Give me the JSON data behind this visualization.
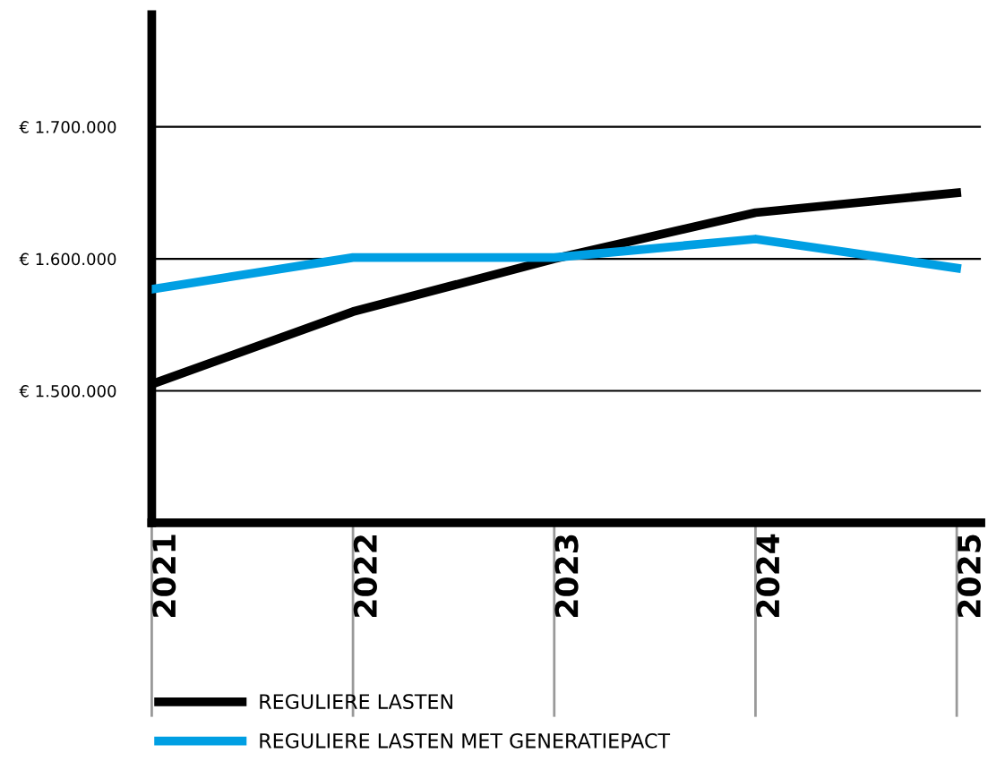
{
  "chart_data": {
    "type": "line",
    "categories": [
      "2021",
      "2022",
      "2023",
      "2024",
      "2025"
    ],
    "series": [
      {
        "name": "REGULIERE LASTEN",
        "color": "#000000",
        "values": [
          1505000,
          1560000,
          1600000,
          1635000,
          1650000
        ]
      },
      {
        "name": "REGULIERE LASTEN MET GENERATIEPACT",
        "color": "#009fe3",
        "values": [
          1577000,
          1601000,
          1601000,
          1615000,
          1593000
        ]
      }
    ],
    "ylim": [
      1400000,
      1785000
    ],
    "yticks": [
      {
        "value": 1500000,
        "label": "€ 1.500.000"
      },
      {
        "value": 1600000,
        "label": "€ 1.600.000"
      },
      {
        "value": 1700000,
        "label": "€ 1.700.000"
      }
    ],
    "grid": "y",
    "legend": "bottom",
    "marker": "none",
    "line_style": "solid"
  }
}
